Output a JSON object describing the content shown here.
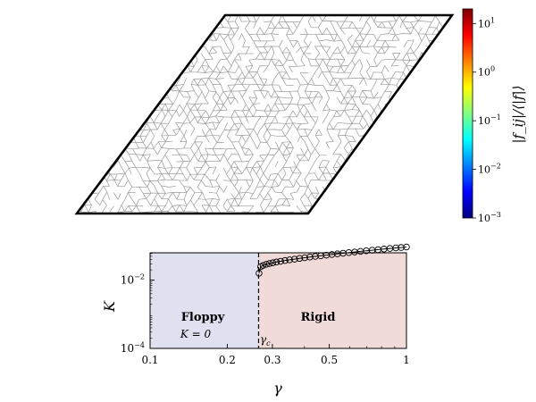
{
  "colorbar": {
    "label": "|f_ij|/⟨|f|⟩",
    "ticks": [
      {
        "exp": 1,
        "label": "10"
      },
      {
        "exp": 0,
        "label": "10"
      },
      {
        "exp": -1,
        "label": "10"
      },
      {
        "exp": -2,
        "label": "10"
      },
      {
        "exp": -3,
        "label": "10"
      }
    ],
    "tick_exps": [
      "1",
      "0",
      "−1",
      "−2",
      "−3"
    ],
    "range_exp": [
      -3,
      1.3
    ],
    "colors": [
      "#00007f",
      "#0000ff",
      "#0080ff",
      "#00ffff",
      "#80ff80",
      "#ffff00",
      "#ff8000",
      "#ff0000",
      "#7f0000"
    ]
  },
  "network": {
    "edge_color": "#9a9a9a",
    "outline_color": "#000000"
  },
  "chart_data": {
    "type": "scatter",
    "xlabel": "γ",
    "ylabel": "K",
    "xscale": "log",
    "yscale": "log",
    "xlim": [
      0.1,
      1.0
    ],
    "ylim_exp": [
      -4,
      -1.2
    ],
    "xticks": [
      {
        "value": 0.1,
        "label": "0.1"
      },
      {
        "value": 0.2,
        "label": "0.2"
      },
      {
        "value": 0.3,
        "label": "0.3"
      },
      {
        "value": 0.5,
        "label": "0.5"
      },
      {
        "value": 1.0,
        "label": "1"
      }
    ],
    "yticks": [
      {
        "exp": -2,
        "label": "10"
      },
      {
        "exp": -4,
        "label": "10"
      }
    ],
    "ytick_exps": [
      "−2",
      "−4"
    ],
    "critical_gamma": 0.265,
    "critical_label": "γ",
    "critical_sub": "c",
    "regions": {
      "floppy": {
        "title": "Floppy",
        "subtitle": "K = 0",
        "color": "#dfe1f0"
      },
      "rigid": {
        "title": "Rigid",
        "color": "#f0dbd9"
      }
    },
    "points": [
      {
        "x": 0.266,
        "y": 0.0159
      },
      {
        "x": 0.27,
        "y": 0.0248
      },
      {
        "x": 0.276,
        "y": 0.0269
      },
      {
        "x": 0.284,
        "y": 0.029
      },
      {
        "x": 0.292,
        "y": 0.0306
      },
      {
        "x": 0.301,
        "y": 0.0322
      },
      {
        "x": 0.311,
        "y": 0.0339
      },
      {
        "x": 0.323,
        "y": 0.0357
      },
      {
        "x": 0.336,
        "y": 0.0375
      },
      {
        "x": 0.35,
        "y": 0.0393
      },
      {
        "x": 0.366,
        "y": 0.0412
      },
      {
        "x": 0.383,
        "y": 0.0432
      },
      {
        "x": 0.401,
        "y": 0.0452
      },
      {
        "x": 0.42,
        "y": 0.0473
      },
      {
        "x": 0.441,
        "y": 0.0495
      },
      {
        "x": 0.463,
        "y": 0.0517
      },
      {
        "x": 0.487,
        "y": 0.054
      },
      {
        "x": 0.512,
        "y": 0.0564
      },
      {
        "x": 0.538,
        "y": 0.0589
      },
      {
        "x": 0.566,
        "y": 0.0614
      },
      {
        "x": 0.596,
        "y": 0.064
      },
      {
        "x": 0.628,
        "y": 0.0667
      },
      {
        "x": 0.662,
        "y": 0.0695
      },
      {
        "x": 0.697,
        "y": 0.0723
      },
      {
        "x": 0.735,
        "y": 0.0752
      },
      {
        "x": 0.775,
        "y": 0.0782
      },
      {
        "x": 0.817,
        "y": 0.0813
      },
      {
        "x": 0.862,
        "y": 0.0845
      },
      {
        "x": 0.909,
        "y": 0.0877
      },
      {
        "x": 0.953,
        "y": 0.0903
      },
      {
        "x": 1.0,
        "y": 0.0933
      }
    ]
  }
}
